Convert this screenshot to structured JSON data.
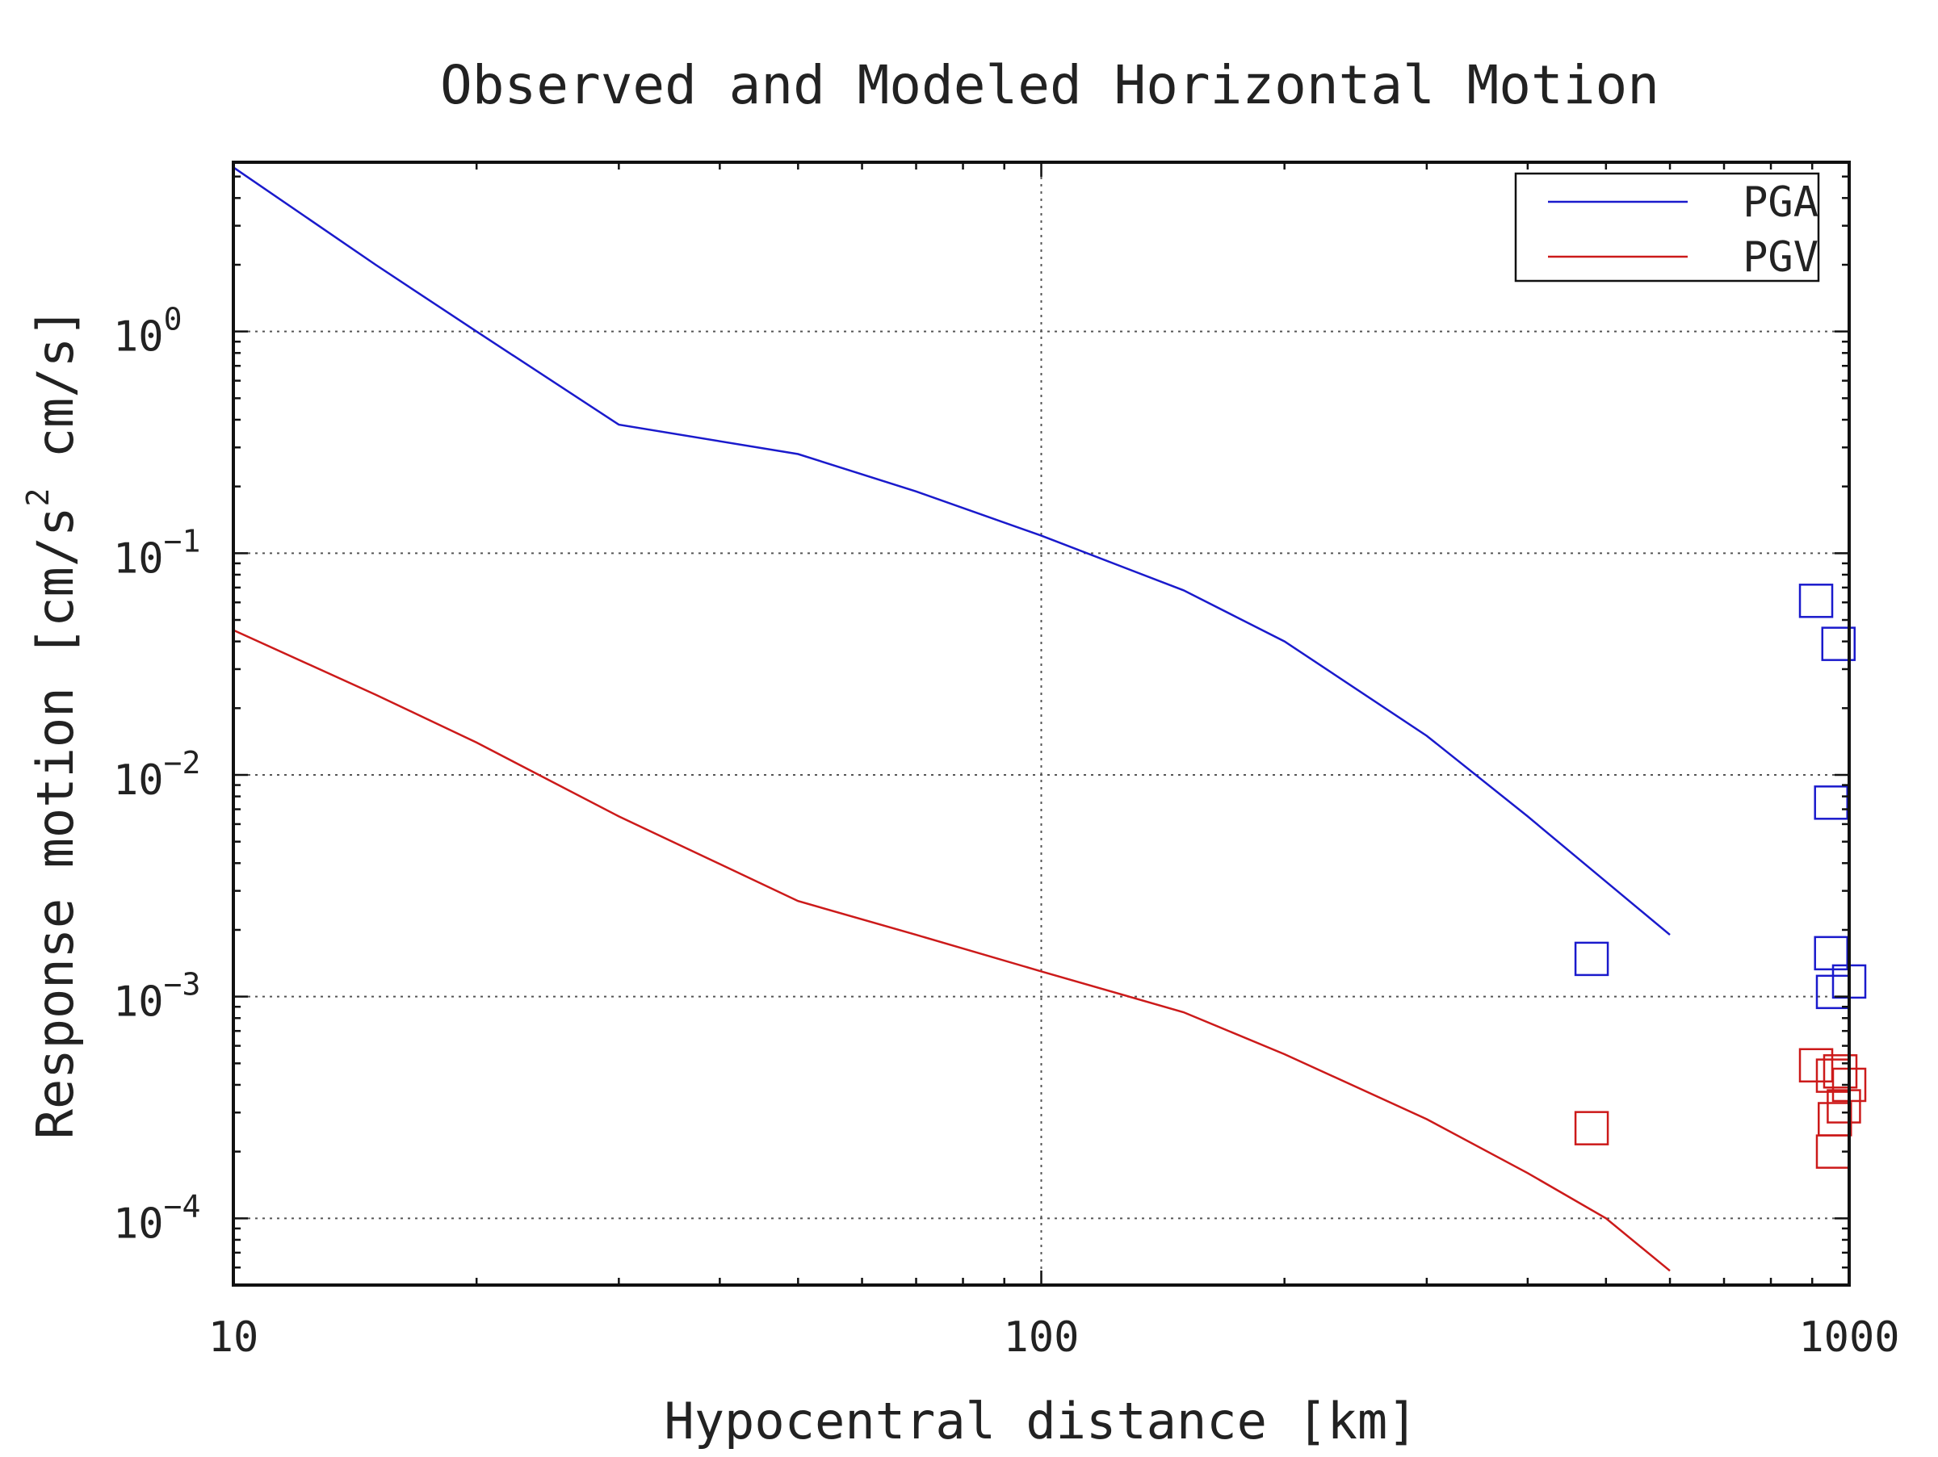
{
  "chart_data": {
    "type": "line",
    "title": "Observed and Modeled Horizontal Motion",
    "xlabel": "Hypocentral distance [km]",
    "ylabel_parts": [
      "Response motion [cm/s",
      "2",
      " cm/s]"
    ],
    "xscale": "log",
    "yscale": "log",
    "xlim": [
      10,
      1000
    ],
    "ylim": [
      5e-05,
      5.8
    ],
    "x_ticks": [
      {
        "value": 10,
        "label": "10"
      },
      {
        "value": 100,
        "label": "100"
      },
      {
        "value": 1000,
        "label": "1000"
      }
    ],
    "y_ticks": [
      {
        "value": 1,
        "base": "10",
        "exp": "0"
      },
      {
        "value": 0.1,
        "base": "10",
        "exp": "−1"
      },
      {
        "value": 0.01,
        "base": "10",
        "exp": "−2"
      },
      {
        "value": 0.001,
        "base": "10",
        "exp": "−3"
      },
      {
        "value": 0.0001,
        "base": "10",
        "exp": "−4"
      }
    ],
    "grid": true,
    "legend_position": "top-right",
    "series": [
      {
        "name": "PGA",
        "color": "#1a1acc",
        "line": {
          "x": [
            10,
            15,
            20,
            30,
            50,
            70,
            100,
            150,
            200,
            300,
            400,
            500,
            600
          ],
          "y": [
            5.5,
            2.0,
            1.0,
            0.38,
            0.28,
            0.19,
            0.12,
            0.068,
            0.04,
            0.015,
            0.0065,
            0.0033,
            0.0019
          ]
        },
        "observed": {
          "x": [
            480,
            910,
            970,
            950,
            950,
            955,
            1000
          ],
          "y": [
            0.00148,
            0.061,
            0.039,
            0.0075,
            0.00157,
            0.00105,
            0.00117
          ]
        }
      },
      {
        "name": "PGV",
        "color": "#cc1a1a",
        "line": {
          "x": [
            10,
            15,
            20,
            30,
            50,
            70,
            100,
            150,
            200,
            300,
            400,
            500,
            600
          ],
          "y": [
            0.045,
            0.023,
            0.014,
            0.0065,
            0.0027,
            0.0019,
            0.0013,
            0.00085,
            0.00055,
            0.00028,
            0.00016,
            0.0001,
            5.8e-05
          ]
        },
        "observed": {
          "x": [
            480,
            910,
            955,
            975,
            1000,
            985,
            960,
            955
          ],
          "y": [
            0.000255,
            0.00049,
            0.00044,
            0.00046,
            0.0004,
            0.00032,
            0.00028,
            0.0002
          ]
        }
      }
    ]
  }
}
